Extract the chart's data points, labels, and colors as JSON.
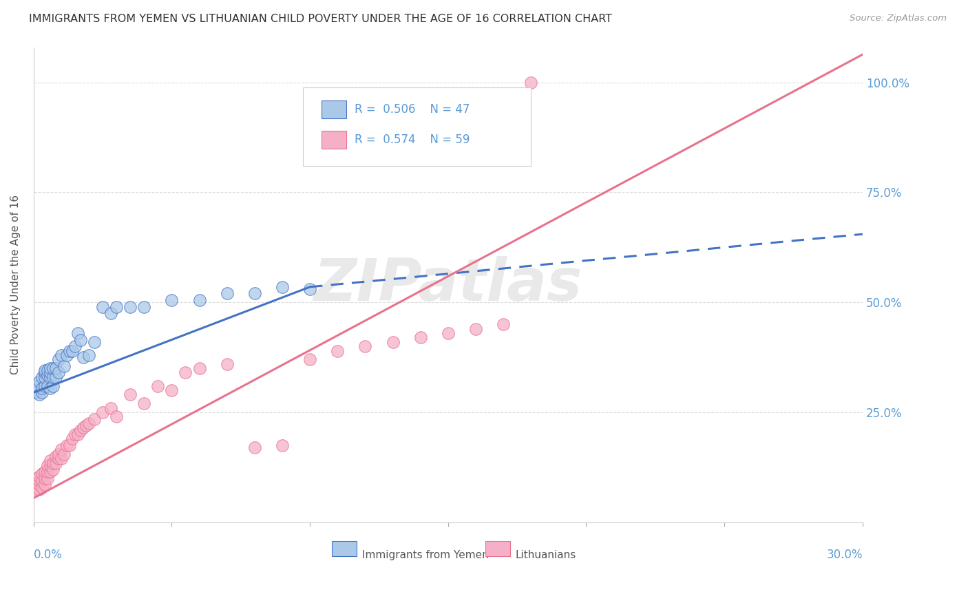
{
  "title": "IMMIGRANTS FROM YEMEN VS LITHUANIAN CHILD POVERTY UNDER THE AGE OF 16 CORRELATION CHART",
  "source": "Source: ZipAtlas.com",
  "ylabel": "Child Poverty Under the Age of 16",
  "legend_label1": "Immigrants from Yemen",
  "legend_label2": "Lithuanians",
  "legend_r1": "0.506",
  "legend_n1": "47",
  "legend_r2": "0.574",
  "legend_n2": "59",
  "color_yemen": "#aac9e8",
  "color_lith": "#f5b0c8",
  "color_line_yemen": "#4472c4",
  "color_line_lith": "#e8728c",
  "color_axis": "#5b9bd5",
  "color_title": "#333333",
  "color_source": "#999999",
  "watermark": "ZIPatlas",
  "xlim": [
    0.0,
    0.3
  ],
  "ylim": [
    0.0,
    1.08
  ],
  "yticks": [
    0.25,
    0.5,
    0.75,
    1.0
  ],
  "ytick_labels": [
    "25.0%",
    "50.0%",
    "75.0%",
    "100.0%"
  ],
  "scatter_yemen_x": [
    0.001,
    0.001,
    0.002,
    0.002,
    0.003,
    0.003,
    0.003,
    0.004,
    0.004,
    0.004,
    0.004,
    0.005,
    0.005,
    0.005,
    0.006,
    0.006,
    0.006,
    0.006,
    0.007,
    0.007,
    0.007,
    0.008,
    0.008,
    0.009,
    0.009,
    0.01,
    0.011,
    0.012,
    0.013,
    0.014,
    0.015,
    0.016,
    0.017,
    0.018,
    0.02,
    0.022,
    0.025,
    0.028,
    0.03,
    0.035,
    0.04,
    0.05,
    0.06,
    0.07,
    0.08,
    0.09,
    0.1
  ],
  "scatter_yemen_y": [
    0.295,
    0.31,
    0.29,
    0.32,
    0.295,
    0.305,
    0.33,
    0.31,
    0.33,
    0.34,
    0.345,
    0.31,
    0.335,
    0.345,
    0.305,
    0.33,
    0.34,
    0.35,
    0.31,
    0.33,
    0.35,
    0.33,
    0.35,
    0.34,
    0.37,
    0.38,
    0.355,
    0.38,
    0.39,
    0.39,
    0.4,
    0.43,
    0.415,
    0.375,
    0.38,
    0.41,
    0.49,
    0.475,
    0.49,
    0.49,
    0.49,
    0.505,
    0.505,
    0.52,
    0.52,
    0.535,
    0.53
  ],
  "scatter_lith_x": [
    0.001,
    0.001,
    0.001,
    0.002,
    0.002,
    0.002,
    0.002,
    0.003,
    0.003,
    0.003,
    0.004,
    0.004,
    0.004,
    0.005,
    0.005,
    0.005,
    0.006,
    0.006,
    0.006,
    0.007,
    0.007,
    0.008,
    0.008,
    0.009,
    0.009,
    0.01,
    0.01,
    0.011,
    0.012,
    0.013,
    0.014,
    0.015,
    0.016,
    0.017,
    0.018,
    0.019,
    0.02,
    0.022,
    0.025,
    0.028,
    0.03,
    0.035,
    0.04,
    0.045,
    0.05,
    0.055,
    0.06,
    0.07,
    0.08,
    0.09,
    0.1,
    0.11,
    0.12,
    0.13,
    0.14,
    0.15,
    0.16,
    0.17,
    0.18
  ],
  "scatter_lith_y": [
    0.075,
    0.09,
    0.1,
    0.075,
    0.085,
    0.095,
    0.105,
    0.08,
    0.095,
    0.11,
    0.085,
    0.1,
    0.115,
    0.1,
    0.115,
    0.13,
    0.115,
    0.13,
    0.14,
    0.12,
    0.135,
    0.135,
    0.15,
    0.145,
    0.155,
    0.145,
    0.165,
    0.155,
    0.175,
    0.175,
    0.19,
    0.2,
    0.2,
    0.21,
    0.215,
    0.22,
    0.225,
    0.235,
    0.25,
    0.26,
    0.24,
    0.29,
    0.27,
    0.31,
    0.3,
    0.34,
    0.35,
    0.36,
    0.17,
    0.175,
    0.37,
    0.39,
    0.4,
    0.41,
    0.42,
    0.43,
    0.44,
    0.45,
    1.0
  ],
  "line_yemen_x0": 0.0,
  "line_yemen_y0": 0.295,
  "line_yemen_x1": 0.1,
  "line_yemen_y1": 0.535,
  "line_yemen_dash_x1": 0.3,
  "line_yemen_dash_y1": 0.655,
  "line_lith_x0": 0.0,
  "line_lith_y0": 0.055,
  "line_lith_x1": 0.18,
  "line_lith_y1": 0.66
}
